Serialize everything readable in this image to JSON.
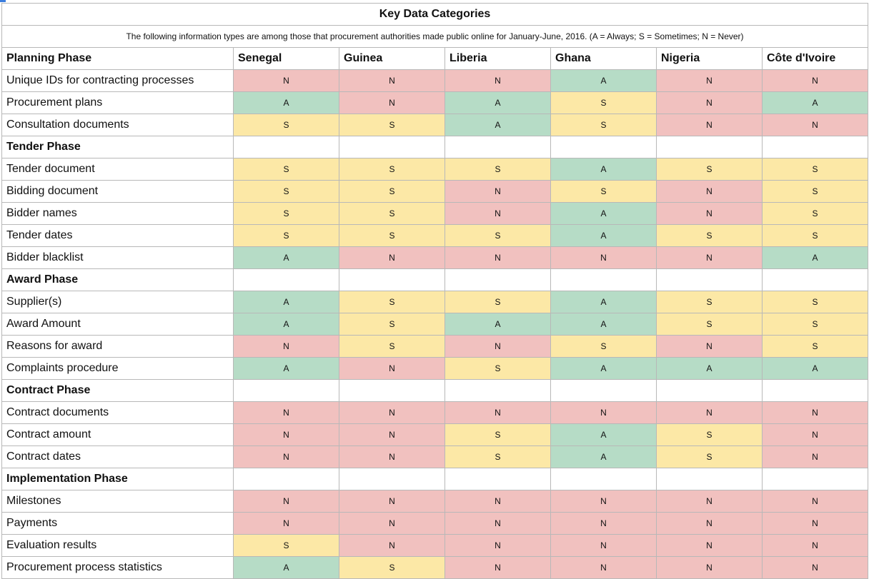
{
  "title": "Key Data Categories",
  "subtitle": "The following information types are among those that procurement authorities made public online for January-June, 2016. (A = Always; S = Sometimes; N = Never)",
  "countries": [
    "Senegal",
    "Guinea",
    "Liberia",
    "Ghana",
    "Nigeria",
    "Côte d'Ivoire"
  ],
  "colors": {
    "A": "#b6dcc6",
    "S": "#fce8a6",
    "N": "#f1c1bf"
  },
  "phases": [
    {
      "name": "Planning Phase",
      "rows": [
        {
          "label": "Unique IDs for contracting processes",
          "values": [
            "N",
            "N",
            "N",
            "A",
            "N",
            "N"
          ]
        },
        {
          "label": "Procurement plans",
          "values": [
            "A",
            "N",
            "A",
            "S",
            "N",
            "A"
          ]
        },
        {
          "label": "Consultation documents",
          "values": [
            "S",
            "S",
            "A",
            "S",
            "N",
            "N"
          ]
        }
      ]
    },
    {
      "name": "Tender Phase",
      "rows": [
        {
          "label": "Tender document",
          "values": [
            "S",
            "S",
            "S",
            "A",
            "S",
            "S"
          ]
        },
        {
          "label": "Bidding document",
          "values": [
            "S",
            "S",
            "N",
            "S",
            "N",
            "S"
          ]
        },
        {
          "label": "Bidder names",
          "values": [
            "S",
            "S",
            "N",
            "A",
            "N",
            "S"
          ]
        },
        {
          "label": "Tender dates",
          "values": [
            "S",
            "S",
            "S",
            "A",
            "S",
            "S"
          ]
        },
        {
          "label": "Bidder blacklist",
          "values": [
            "A",
            "N",
            "N",
            "N",
            "N",
            "A"
          ]
        }
      ]
    },
    {
      "name": "Award Phase",
      "rows": [
        {
          "label": "Supplier(s)",
          "values": [
            "A",
            "S",
            "S",
            "A",
            "S",
            "S"
          ]
        },
        {
          "label": "Award Amount",
          "values": [
            "A",
            "S",
            "A",
            "A",
            "S",
            "S"
          ]
        },
        {
          "label": "Reasons for award",
          "values": [
            "N",
            "S",
            "N",
            "S",
            "N",
            "S"
          ]
        },
        {
          "label": "Complaints procedure",
          "values": [
            "A",
            "N",
            "S",
            "A",
            "A",
            "A"
          ]
        }
      ]
    },
    {
      "name": "Contract Phase",
      "rows": [
        {
          "label": "Contract documents",
          "values": [
            "N",
            "N",
            "N",
            "N",
            "N",
            "N"
          ]
        },
        {
          "label": "Contract amount",
          "values": [
            "N",
            "N",
            "S",
            "A",
            "S",
            "N"
          ]
        },
        {
          "label": "Contract dates",
          "values": [
            "N",
            "N",
            "S",
            "A",
            "S",
            "N"
          ]
        }
      ]
    },
    {
      "name": "Implementation Phase",
      "rows": [
        {
          "label": "Milestones",
          "values": [
            "N",
            "N",
            "N",
            "N",
            "N",
            "N"
          ]
        },
        {
          "label": "Payments",
          "values": [
            "N",
            "N",
            "N",
            "N",
            "N",
            "N"
          ]
        },
        {
          "label": "Evaluation results",
          "values": [
            "S",
            "N",
            "N",
            "N",
            "N",
            "N"
          ]
        },
        {
          "label": "Procurement process statistics",
          "values": [
            "A",
            "S",
            "N",
            "N",
            "N",
            "N"
          ]
        }
      ]
    }
  ]
}
